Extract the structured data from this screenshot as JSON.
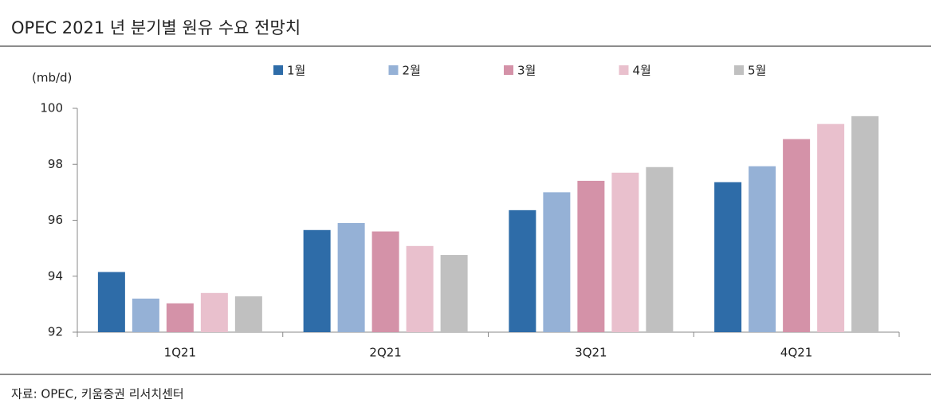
{
  "chart_data": {
    "type": "bar",
    "title": "OPEC 2021 년 분기별 원유 수요 전망치",
    "y_label": "(mb/d)",
    "source": "자료: OPEC, 키움증권 리서치센터",
    "categories": [
      "1Q21",
      "2Q21",
      "3Q21",
      "4Q21"
    ],
    "series": [
      {
        "name": "1월",
        "color": "#2e6ca8",
        "values": [
          94.15,
          95.65,
          96.36,
          97.36
        ]
      },
      {
        "name": "2월",
        "color": "#95b1d6",
        "values": [
          93.2,
          95.9,
          97.0,
          97.93
        ]
      },
      {
        "name": "3월",
        "color": "#d492a8",
        "values": [
          93.03,
          95.6,
          97.41,
          98.9
        ]
      },
      {
        "name": "4월",
        "color": "#e9c0cd",
        "values": [
          93.4,
          95.08,
          97.7,
          99.44
        ]
      },
      {
        "name": "5월",
        "color": "#c0c0c0",
        "values": [
          93.28,
          94.76,
          97.9,
          99.72
        ]
      }
    ],
    "ylim": [
      92,
      100
    ],
    "yticks": [
      92,
      94,
      96,
      98,
      100
    ],
    "legend": "top"
  }
}
